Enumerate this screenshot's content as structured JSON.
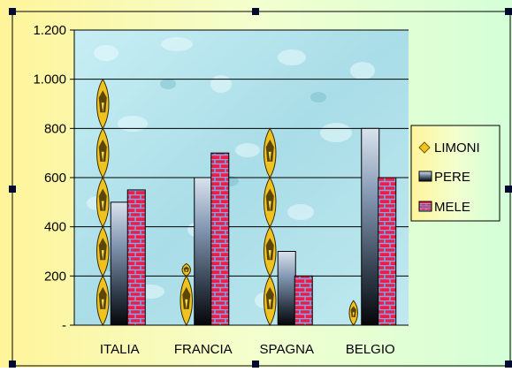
{
  "chart_data": {
    "type": "bar",
    "title": "",
    "xlabel": "",
    "ylabel": "",
    "categories": [
      "ITALIA",
      "FRANCIA",
      "SPAGNA",
      "BELGIO"
    ],
    "y_ticks": [
      "-",
      "200",
      "400",
      "600",
      "800",
      "1.000",
      "1.200"
    ],
    "ylim": [
      0,
      1200
    ],
    "grid": true,
    "legend_position": "right",
    "series": [
      {
        "name": "LIMONI",
        "values": [
          1000,
          250,
          800,
          100
        ],
        "style": "stacked-lemon-icons",
        "color": "#f0c21f"
      },
      {
        "name": "PERE",
        "values": [
          500,
          600,
          300,
          800
        ],
        "style": "gradient",
        "color": "#7d93ad"
      },
      {
        "name": "MELE",
        "values": [
          550,
          700,
          200,
          600
        ],
        "style": "brick",
        "color": "#ee1d47"
      }
    ],
    "colors": {
      "chart_area_gradient_left": "#fff59a",
      "chart_area_gradient_right": "#d8ffd8",
      "plot_area": "#aee1ea"
    }
  }
}
